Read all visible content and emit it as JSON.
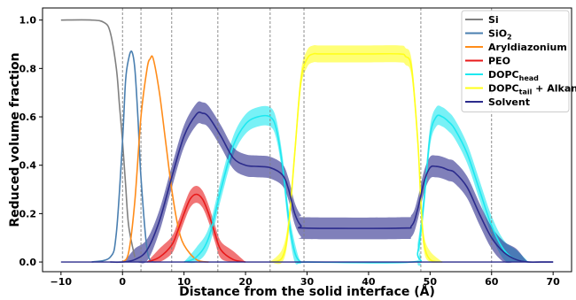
{
  "chart_data": {
    "type": "line",
    "xlabel": "Distance from the solid interface (Å)",
    "ylabel": "Reduced volume fraction",
    "xlim": [
      -13,
      73
    ],
    "ylim": [
      -0.04,
      1.05
    ],
    "xticks": [
      -10,
      0,
      10,
      20,
      30,
      40,
      50,
      60,
      70
    ],
    "yticks": [
      0.0,
      0.2,
      0.4,
      0.6,
      0.8,
      1.0
    ],
    "grid": false,
    "legend_position": "top-right",
    "vertical_dashed_lines_x": [
      0,
      3,
      8,
      15.5,
      24,
      29.5,
      48.5,
      60
    ],
    "series": [
      {
        "name": "Si",
        "color": "#808080",
        "x": [
          -10,
          -5,
          -3,
          -2,
          -1,
          -0.5,
          0,
          0.5,
          1,
          2
        ],
        "y": [
          1.0,
          1.0,
          0.99,
          0.95,
          0.8,
          0.65,
          0.5,
          0.32,
          0.15,
          0.02
        ]
      },
      {
        "name": "SiO2",
        "label_main": "SiO",
        "label_sub": "2",
        "color": "#4a7fb0",
        "x": [
          -5,
          -2,
          -1,
          0,
          0.5,
          1,
          1.5,
          2,
          2.5,
          3,
          4,
          5
        ],
        "y": [
          0.0,
          0.02,
          0.12,
          0.5,
          0.75,
          0.84,
          0.87,
          0.8,
          0.6,
          0.35,
          0.05,
          0.0
        ]
      },
      {
        "name": "Aryldiazonium",
        "color": "#ff8c1a",
        "x": [
          0,
          1,
          2,
          3,
          4,
          4.5,
          5,
          6,
          7,
          8,
          9,
          10,
          12,
          14
        ],
        "y": [
          0.0,
          0.04,
          0.25,
          0.6,
          0.8,
          0.84,
          0.84,
          0.7,
          0.5,
          0.3,
          0.15,
          0.07,
          0.01,
          0.0
        ]
      },
      {
        "name": "PEO",
        "color": "#e8191a",
        "band_halfwidth": 0.035,
        "x": [
          4,
          6,
          8,
          9,
          10,
          11,
          12,
          13,
          14,
          15,
          16,
          18,
          20
        ],
        "y": [
          0.0,
          0.02,
          0.07,
          0.13,
          0.2,
          0.26,
          0.28,
          0.26,
          0.2,
          0.12,
          0.05,
          0.01,
          0.0
        ]
      },
      {
        "name": "DOPC_head",
        "label_main": "DOPC",
        "label_sub": "head",
        "color": "#1ee8f0",
        "band_halfwidth": 0.04,
        "x": [
          10,
          12,
          14,
          16,
          18,
          20,
          22,
          24,
          25,
          26,
          27,
          28,
          29,
          30,
          47,
          48,
          49,
          50,
          51,
          52,
          53,
          54,
          56,
          58,
          60,
          62,
          64,
          66
        ],
        "y": [
          0.0,
          0.02,
          0.1,
          0.3,
          0.48,
          0.57,
          0.6,
          0.6,
          0.55,
          0.4,
          0.18,
          0.04,
          0.0,
          0.0,
          0.0,
          0.04,
          0.25,
          0.52,
          0.6,
          0.6,
          0.58,
          0.55,
          0.45,
          0.3,
          0.15,
          0.05,
          0.01,
          0.0
        ]
      },
      {
        "name": "DOPC_tail + Alkane",
        "label_main": "DOPC",
        "label_sub": "tail",
        "label_rest": " + Alkane",
        "color": "#ffff1a",
        "band_halfwidth": 0.035,
        "x": [
          24,
          26,
          27,
          28,
          29,
          30,
          31,
          32,
          35,
          40,
          45,
          46,
          47,
          48,
          48.5,
          49,
          50,
          52
        ],
        "y": [
          0.0,
          0.02,
          0.15,
          0.45,
          0.75,
          0.84,
          0.86,
          0.86,
          0.86,
          0.86,
          0.86,
          0.85,
          0.8,
          0.5,
          0.25,
          0.08,
          0.01,
          0.0
        ]
      },
      {
        "name": "Solvent",
        "color": "#2b2b8c",
        "band_halfwidth": 0.045,
        "x": [
          -2,
          0,
          2,
          4,
          6,
          8,
          10,
          12,
          13,
          14,
          16,
          18,
          20,
          22,
          24,
          26,
          27,
          28,
          29,
          30,
          45,
          47,
          48,
          49,
          50,
          51,
          52,
          53,
          54,
          56,
          58,
          60,
          62,
          64,
          66,
          68,
          70
        ],
        "y": [
          0.0,
          0.0,
          0.01,
          0.05,
          0.17,
          0.35,
          0.52,
          0.61,
          0.615,
          0.6,
          0.52,
          0.43,
          0.4,
          0.395,
          0.39,
          0.36,
          0.3,
          0.2,
          0.15,
          0.14,
          0.14,
          0.15,
          0.22,
          0.33,
          0.39,
          0.395,
          0.39,
          0.38,
          0.37,
          0.31,
          0.2,
          0.1,
          0.04,
          0.01,
          0.0,
          0.0,
          0.0
        ]
      }
    ]
  }
}
